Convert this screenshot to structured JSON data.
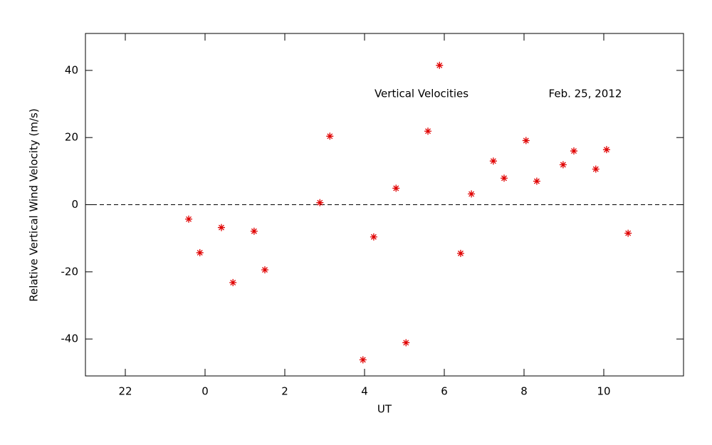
{
  "chart_data": {
    "type": "scatter",
    "xlabel": "UT",
    "ylabel": "Relative Vertical Wind Velocity (m/s)",
    "annotations": [
      "Vertical Velocities",
      "Feb. 25, 2012"
    ],
    "x": [
      -0.41,
      -0.13,
      0.41,
      0.7,
      1.23,
      1.5,
      2.88,
      3.13,
      3.96,
      4.23,
      4.79,
      5.04,
      5.59,
      5.88,
      6.41,
      6.68,
      7.23,
      7.5,
      8.05,
      8.32,
      8.98,
      9.25,
      9.8,
      10.07,
      10.61
    ],
    "values": [
      -4.3,
      -14.3,
      -6.8,
      -23.2,
      -7.9,
      -19.4,
      0.6,
      20.4,
      -46.2,
      -9.6,
      4.9,
      -41.1,
      21.9,
      41.5,
      -14.5,
      3.2,
      13.0,
      7.9,
      19.1,
      7.0,
      11.9,
      16.0,
      10.6,
      16.4,
      -8.5
    ],
    "color": "#e00000",
    "xlim": [
      -3,
      12
    ],
    "xticks": [
      {
        "value": -2,
        "label": "22"
      },
      0,
      2,
      4,
      6,
      8,
      10
    ],
    "ylim": [
      -51,
      51
    ],
    "yticks": [
      -40,
      -20,
      0,
      20,
      40
    ],
    "hline": 0
  }
}
